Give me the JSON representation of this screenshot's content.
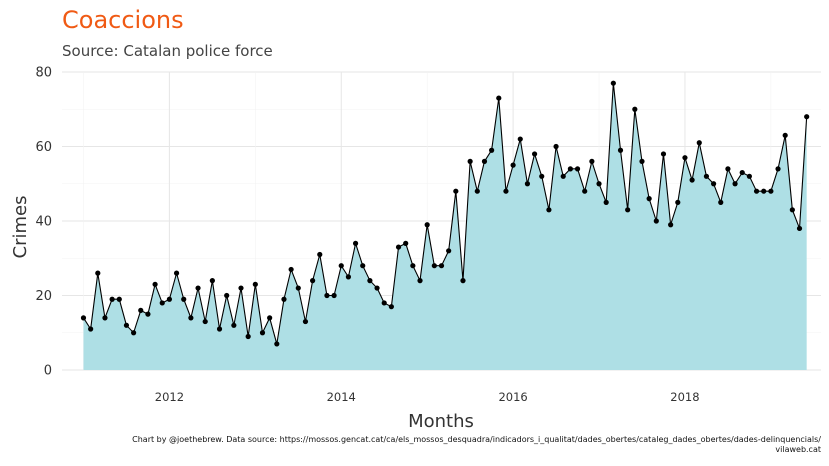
{
  "title": "Coaccions",
  "subtitle": "Source: Catalan police force",
  "caption_line1": "Chart by @joethebrew. Data source: https://mossos.gencat.cat/ca/els_mossos_desquadra/indicadors_i_qualitat/dades_obertes/cataleg_dades_obertes/dades-delinquencials/",
  "caption_line2": "vilaweb.cat",
  "colors": {
    "title": "#f05a14",
    "area": "#aedfe5",
    "line": "#000000",
    "grid": "#e6e6e6"
  },
  "chart_data": {
    "type": "area",
    "xlabel": "Months",
    "ylabel": "Crimes",
    "ylim": [
      0,
      80
    ],
    "xlim": [
      "2010-10",
      "2019-08"
    ],
    "yticks": [
      0,
      20,
      40,
      60,
      80
    ],
    "xticks": [
      "2012",
      "2014",
      "2016",
      "2018"
    ],
    "grid": true,
    "series": [
      {
        "x": [
          "2011-01",
          "2011-02",
          "2011-03",
          "2011-04",
          "2011-05",
          "2011-06",
          "2011-07",
          "2011-08",
          "2011-09",
          "2011-10",
          "2011-11",
          "2011-12",
          "2012-01",
          "2012-02",
          "2012-03",
          "2012-04",
          "2012-05",
          "2012-06",
          "2012-07",
          "2012-08",
          "2012-09",
          "2012-10",
          "2012-11",
          "2012-12",
          "2013-01",
          "2013-02",
          "2013-03",
          "2013-04",
          "2013-05",
          "2013-06",
          "2013-07",
          "2013-08",
          "2013-09",
          "2013-10",
          "2013-11",
          "2013-12",
          "2014-01",
          "2014-02",
          "2014-03",
          "2014-04",
          "2014-05",
          "2014-06",
          "2014-07",
          "2014-08",
          "2014-09",
          "2014-10",
          "2014-11",
          "2014-12",
          "2015-01",
          "2015-02",
          "2015-03",
          "2015-04",
          "2015-05",
          "2015-06",
          "2015-07",
          "2015-08",
          "2015-09",
          "2015-10",
          "2015-11",
          "2015-12",
          "2016-01",
          "2016-02",
          "2016-03",
          "2016-04",
          "2016-05",
          "2016-06",
          "2016-07",
          "2016-08",
          "2016-09",
          "2016-10",
          "2016-11",
          "2016-12",
          "2017-01",
          "2017-02",
          "2017-03",
          "2017-04",
          "2017-05",
          "2017-06",
          "2017-07",
          "2017-08",
          "2017-09",
          "2017-10",
          "2017-11",
          "2017-12",
          "2018-01",
          "2018-02",
          "2018-03",
          "2018-04",
          "2018-05",
          "2018-06",
          "2018-07",
          "2018-08",
          "2018-09",
          "2018-10",
          "2018-11",
          "2018-12",
          "2019-01",
          "2019-02",
          "2019-03",
          "2019-04",
          "2019-05",
          "2019-06"
        ],
        "y": [
          14,
          11,
          26,
          14,
          19,
          19,
          12,
          10,
          16,
          15,
          23,
          18,
          19,
          26,
          19,
          14,
          22,
          13,
          24,
          11,
          20,
          12,
          22,
          9,
          23,
          10,
          14,
          7,
          19,
          27,
          22,
          13,
          24,
          31,
          20,
          20,
          28,
          25,
          34,
          28,
          24,
          22,
          18,
          17,
          33,
          34,
          28,
          24,
          39,
          28,
          28,
          32,
          48,
          24,
          56,
          48,
          56,
          59,
          73,
          48,
          55,
          62,
          50,
          58,
          52,
          43,
          60,
          52,
          54,
          54,
          48,
          56,
          50,
          45,
          77,
          59,
          43,
          70,
          56,
          46,
          40,
          58,
          39,
          45,
          57,
          51,
          61,
          52,
          50,
          45,
          54,
          50,
          53,
          52,
          48,
          48,
          48,
          54,
          63,
          43,
          38,
          68
        ]
      }
    ]
  }
}
